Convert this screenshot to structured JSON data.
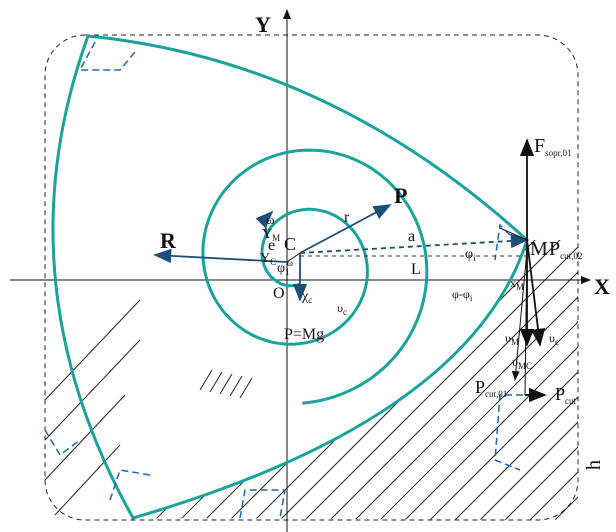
{
  "labels": [
    {
      "text": "Y"
    },
    {
      "text": "X"
    },
    {
      "text": "R"
    },
    {
      "text": "P"
    },
    {
      "text": "r"
    },
    {
      "text": "e"
    },
    {
      "text": "C"
    },
    {
      "text": "a"
    },
    {
      "text": "L"
    },
    {
      "text": "φ",
      "sub": "1"
    },
    {
      "text": "Y",
      "sub": "M"
    },
    {
      "text": "Y",
      "sub": "C"
    },
    {
      "text": "ω"
    },
    {
      "text": "ω"
    },
    {
      "text": "O"
    },
    {
      "text": "χ",
      "sub": "c"
    },
    {
      "text": "υ",
      "sub": "c"
    },
    {
      "text": "P=Mg"
    },
    {
      "text": "M"
    },
    {
      "text": "P",
      "sub": "cut,02"
    },
    {
      "text": "F",
      "sub": "sopr,01"
    },
    {
      "text": "φ",
      "sub": "i"
    },
    {
      "text": "φ-φ",
      "sub": "i"
    },
    {
      "text": "x",
      "sub": "M"
    },
    {
      "text": "υ",
      "sub": "M"
    },
    {
      "text": "υ",
      "sub": "c"
    },
    {
      "text": "υ",
      "sub": "MC"
    },
    {
      "text": "P",
      "sub": "cut,01"
    },
    {
      "text": "P",
      "sub": "cut"
    },
    {
      "text": "h"
    }
  ]
}
